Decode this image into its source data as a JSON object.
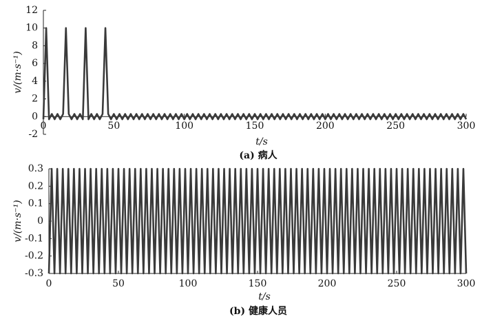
{
  "chart_data": [
    {
      "type": "line",
      "title": "(a) 病人",
      "x_label": "t/s",
      "y_label": "v/(m·s⁻¹)",
      "xlim": [
        0,
        300
      ],
      "xticks": [
        0,
        50,
        100,
        150,
        200,
        250,
        300
      ],
      "ylim": [
        -2,
        12
      ],
      "yticks": [
        -2,
        0,
        2,
        4,
        6,
        8,
        10,
        12
      ],
      "x": [
        0,
        2,
        4,
        6,
        8,
        10,
        12,
        14,
        16,
        18,
        20,
        22,
        24,
        26,
        28,
        30,
        32,
        34,
        36,
        38,
        40,
        42,
        44,
        46,
        48,
        50,
        52,
        54,
        56,
        58,
        60,
        62,
        64,
        66,
        68,
        70,
        72,
        74,
        76,
        78,
        80,
        82,
        84,
        86,
        88,
        90,
        92,
        94,
        96,
        98,
        100,
        102,
        104,
        106,
        108,
        110,
        112,
        114,
        116,
        118,
        120,
        122,
        124,
        126,
        128,
        130,
        132,
        134,
        136,
        138,
        140,
        142,
        144,
        146,
        148,
        150,
        152,
        154,
        156,
        158,
        160,
        162,
        164,
        166,
        168,
        170,
        172,
        174,
        176,
        178,
        180,
        182,
        184,
        186,
        188,
        190,
        192,
        194,
        196,
        198,
        200,
        202,
        204,
        206,
        208,
        210,
        212,
        214,
        216,
        218,
        220,
        222,
        224,
        226,
        228,
        230,
        232,
        234,
        236,
        238,
        240,
        242,
        244,
        246,
        248,
        250,
        252,
        254,
        256,
        258,
        260,
        262,
        264,
        266,
        268,
        270,
        272,
        274,
        276,
        278,
        280,
        282,
        284,
        286,
        288,
        290,
        292,
        294,
        296,
        298,
        300
      ],
      "series": [
        {
          "color": "#3a3a3a",
          "values": [
            -0.3,
            10,
            -0.3,
            0.3,
            -0.3,
            0.3,
            -0.3,
            0.3,
            10,
            0.3,
            -0.3,
            0.3,
            -0.3,
            0.3,
            -0.3,
            10,
            -0.3,
            0.3,
            -0.3,
            0.3,
            -0.3,
            0.3,
            10,
            0.3,
            -0.3,
            0.3,
            -0.3,
            0.3,
            -0.3,
            0.3,
            -0.3,
            0.3,
            -0.3,
            0.3,
            -0.3,
            0.3,
            -0.3,
            0.3,
            -0.3,
            0.3,
            -0.3,
            0.3,
            -0.3,
            0.3,
            -0.3,
            0.3,
            -0.3,
            0.3,
            -0.3,
            0.3,
            -0.3,
            0.3,
            -0.3,
            0.3,
            -0.3,
            0.3,
            -0.3,
            0.3,
            -0.3,
            0.3,
            -0.3,
            0.3,
            -0.3,
            0.3,
            -0.3,
            0.3,
            -0.3,
            0.3,
            -0.3,
            0.3,
            -0.3,
            0.3,
            -0.3,
            0.3,
            -0.3,
            0.3,
            -0.3,
            0.3,
            -0.3,
            0.3,
            -0.3,
            0.3,
            -0.3,
            0.3,
            -0.3,
            0.3,
            -0.3,
            0.3,
            -0.3,
            0.3,
            -0.3,
            0.3,
            -0.3,
            0.3,
            -0.3,
            0.3,
            -0.3,
            0.3,
            -0.3,
            0.3,
            -0.3,
            0.3,
            -0.3,
            0.3,
            -0.3,
            0.3,
            -0.3,
            0.3,
            -0.3,
            0.3,
            -0.3,
            0.3,
            -0.3,
            0.3,
            -0.3,
            0.3,
            -0.3,
            0.3,
            -0.3,
            0.3,
            -0.3,
            0.3,
            -0.3,
            0.3,
            -0.3,
            0.3,
            -0.3,
            0.3,
            -0.3,
            0.3,
            -0.3,
            0.3,
            -0.3,
            0.3,
            -0.3,
            0.3,
            -0.3,
            0.3,
            -0.3,
            0.3,
            -0.3,
            0.3,
            -0.3,
            0.3,
            -0.3,
            0.3,
            -0.3,
            0.3,
            -0.3,
            0.3,
            -0.3
          ]
        }
      ]
    },
    {
      "type": "line",
      "title": "(b) 健康人员",
      "x_label": "t/s",
      "y_label": "v/(m·s⁻¹)",
      "xlim": [
        0,
        300
      ],
      "xticks": [
        0,
        50,
        100,
        150,
        200,
        250,
        300
      ],
      "ylim": [
        -0.3,
        0.3
      ],
      "yticks": [
        -0.3,
        -0.2,
        -0.1,
        0,
        0.1,
        0.2,
        0.3
      ],
      "x": [
        0,
        2,
        4,
        6,
        8,
        10,
        12,
        14,
        16,
        18,
        20,
        22,
        24,
        26,
        28,
        30,
        32,
        34,
        36,
        38,
        40,
        42,
        44,
        46,
        48,
        50,
        52,
        54,
        56,
        58,
        60,
        62,
        64,
        66,
        68,
        70,
        72,
        74,
        76,
        78,
        80,
        82,
        84,
        86,
        88,
        90,
        92,
        94,
        96,
        98,
        100,
        102,
        104,
        106,
        108,
        110,
        112,
        114,
        116,
        118,
        120,
        122,
        124,
        126,
        128,
        130,
        132,
        134,
        136,
        138,
        140,
        142,
        144,
        146,
        148,
        150,
        152,
        154,
        156,
        158,
        160,
        162,
        164,
        166,
        168,
        170,
        172,
        174,
        176,
        178,
        180,
        182,
        184,
        186,
        188,
        190,
        192,
        194,
        196,
        198,
        200,
        202,
        204,
        206,
        208,
        210,
        212,
        214,
        216,
        218,
        220,
        222,
        224,
        226,
        228,
        230,
        232,
        234,
        236,
        238,
        240,
        242,
        244,
        246,
        248,
        250,
        252,
        254,
        256,
        258,
        260,
        262,
        264,
        266,
        268,
        270,
        272,
        274,
        276,
        278,
        280,
        282,
        284,
        286,
        288,
        290,
        292,
        294,
        296,
        298,
        300
      ],
      "series": [
        {
          "color": "#3a3a3a",
          "values": [
            -0.3,
            0.3,
            -0.3,
            0.3,
            -0.3,
            0.3,
            -0.3,
            0.3,
            -0.3,
            0.3,
            -0.3,
            0.3,
            -0.3,
            0.3,
            -0.3,
            0.3,
            -0.3,
            0.3,
            -0.3,
            0.3,
            -0.3,
            0.3,
            -0.3,
            0.3,
            -0.3,
            0.3,
            -0.3,
            0.3,
            -0.3,
            0.3,
            -0.3,
            0.3,
            -0.3,
            0.3,
            -0.3,
            0.3,
            -0.3,
            0.3,
            -0.3,
            0.3,
            -0.3,
            0.3,
            -0.3,
            0.3,
            -0.3,
            0.3,
            -0.3,
            0.3,
            -0.3,
            0.3,
            -0.3,
            0.3,
            -0.3,
            0.3,
            -0.3,
            0.3,
            -0.3,
            0.3,
            -0.3,
            0.3,
            -0.3,
            0.3,
            -0.3,
            0.3,
            -0.3,
            0.3,
            -0.3,
            0.3,
            -0.3,
            0.3,
            -0.3,
            0.3,
            -0.3,
            0.3,
            -0.3,
            0.3,
            -0.3,
            0.3,
            -0.3,
            0.3,
            -0.3,
            0.3,
            -0.3,
            0.3,
            -0.3,
            0.3,
            -0.3,
            0.3,
            -0.3,
            0.3,
            -0.3,
            0.3,
            -0.3,
            0.3,
            -0.3,
            0.3,
            -0.3,
            0.3,
            -0.3,
            0.3,
            -0.3,
            0.3,
            -0.3,
            0.3,
            -0.3,
            0.3,
            -0.3,
            0.3,
            -0.3,
            0.3,
            -0.3,
            0.3,
            -0.3,
            0.3,
            -0.3,
            0.3,
            -0.3,
            0.3,
            -0.3,
            0.3,
            -0.3,
            0.3,
            -0.3,
            0.3,
            -0.3,
            0.3,
            -0.3,
            0.3,
            -0.3,
            0.3,
            -0.3,
            0.3,
            -0.3,
            0.3,
            -0.3,
            0.3,
            -0.3,
            0.3,
            -0.3,
            0.3,
            -0.3,
            0.3,
            -0.3,
            0.3,
            -0.3,
            0.3,
            -0.3,
            0.3,
            -0.3,
            0.3,
            -0.3
          ]
        }
      ]
    }
  ]
}
